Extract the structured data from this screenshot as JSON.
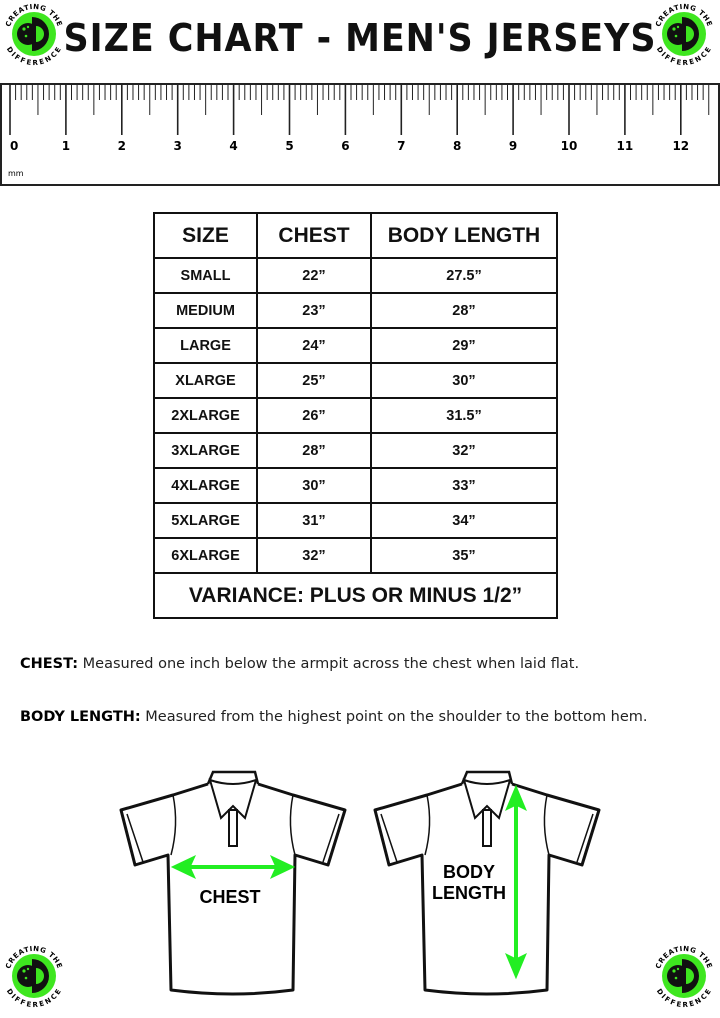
{
  "title": "SIZE CHART - MEN'S JERSEYS",
  "logo": {
    "top_text": "CREATING THE",
    "bottom_text": "DIFFERENCE",
    "accent_color": "#3ee61f"
  },
  "ruler": {
    "labels": [
      "0",
      "1",
      "2",
      "3",
      "4",
      "5",
      "6",
      "7",
      "8",
      "9",
      "10",
      "11",
      "12"
    ],
    "unit": "mm"
  },
  "table": {
    "headers": [
      "SIZE",
      "CHEST",
      "BODY LENGTH"
    ],
    "rows": [
      [
        "SMALL",
        "22”",
        "27.5”"
      ],
      [
        "MEDIUM",
        "23”",
        "28”"
      ],
      [
        "LARGE",
        "24”",
        "29”"
      ],
      [
        "XLARGE",
        "25”",
        "30”"
      ],
      [
        "2XLARGE",
        "26”",
        "31.5”"
      ],
      [
        "3XLARGE",
        "28”",
        "32”"
      ],
      [
        "4XLARGE",
        "30”",
        "33”"
      ],
      [
        "5XLARGE",
        "31”",
        "34”"
      ],
      [
        "6XLARGE",
        "32”",
        "35”"
      ]
    ],
    "footer": "VARIANCE: PLUS OR MINUS 1/2”"
  },
  "notes": [
    {
      "term": "CHEST:",
      "text": " Measured one inch below the armpit across the chest when laid flat."
    },
    {
      "term": "BODY LENGTH:",
      "text": " Measured from the highest point on the shoulder to the bottom hem."
    }
  ],
  "diagrams": {
    "chest_label": "CHEST",
    "body_label_1": "BODY",
    "body_label_2": "LENGTH",
    "arrow_color": "#22ee22"
  }
}
